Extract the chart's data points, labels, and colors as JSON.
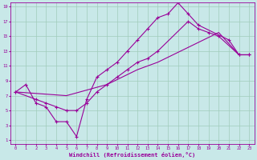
{
  "xlabel": "Windchill (Refroidissement éolien,°C)",
  "bg_color": "#c8e8e8",
  "line_color": "#990099",
  "grid_color": "#a0ccbb",
  "xlim": [
    -0.5,
    23.5
  ],
  "ylim": [
    0.5,
    19.5
  ],
  "xticks": [
    0,
    1,
    2,
    3,
    4,
    5,
    6,
    7,
    8,
    9,
    10,
    11,
    12,
    13,
    14,
    15,
    16,
    17,
    18,
    19,
    20,
    21,
    22,
    23
  ],
  "yticks": [
    1,
    3,
    5,
    7,
    9,
    11,
    13,
    15,
    17,
    19
  ],
  "line1_x": [
    0,
    1,
    2,
    3,
    4,
    5,
    6,
    7,
    8,
    9,
    10,
    11,
    12,
    13,
    14,
    15,
    16,
    17,
    18,
    21,
    22,
    23
  ],
  "line1_y": [
    7.5,
    8.5,
    6.0,
    5.5,
    3.5,
    3.5,
    1.5,
    6.5,
    9.5,
    10.5,
    11.5,
    13.0,
    14.5,
    16.0,
    17.5,
    18.0,
    19.5,
    18.0,
    16.5,
    14.5,
    12.5,
    12.5
  ],
  "line2_x": [
    0,
    2,
    3,
    4,
    5,
    6,
    7,
    8,
    9,
    10,
    11,
    12,
    13,
    14,
    17,
    18,
    19,
    20,
    22,
    23
  ],
  "line2_y": [
    7.5,
    6.5,
    6.0,
    5.5,
    5.0,
    5.0,
    6.0,
    7.5,
    8.5,
    9.5,
    10.5,
    11.5,
    12.0,
    13.0,
    17.0,
    16.0,
    15.5,
    15.0,
    12.5,
    12.5
  ],
  "line3_x": [
    0,
    5,
    9,
    12,
    14,
    17,
    20,
    22,
    23
  ],
  "line3_y": [
    7.5,
    7.0,
    8.5,
    10.5,
    11.5,
    13.5,
    15.5,
    12.5,
    12.5
  ]
}
